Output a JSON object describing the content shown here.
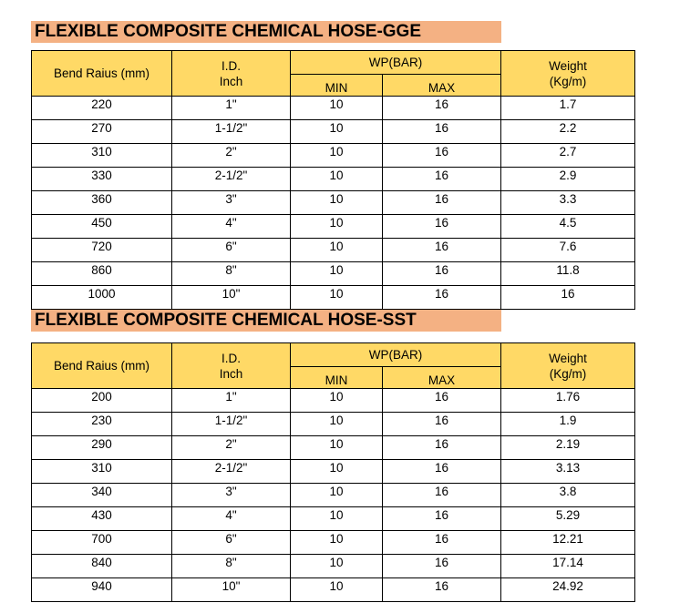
{
  "tables": [
    {
      "title": "FLEXIBLE COMPOSITE CHEMICAL HOSE-GGE",
      "headers": {
        "bend_radius": "Bend Raius (mm)",
        "id_line1": "I.D.",
        "id_line2": "Inch",
        "wp": "WP(BAR)",
        "min": "MIN",
        "max": "MAX",
        "weight_line1": "Weight",
        "weight_line2": "(Kg/m)"
      },
      "rows": [
        {
          "bend": "220",
          "id": "1\"",
          "min": "10",
          "max": "16",
          "weight": "1.7"
        },
        {
          "bend": "270",
          "id": "1-1/2\"",
          "min": "10",
          "max": "16",
          "weight": "2.2"
        },
        {
          "bend": "310",
          "id": "2\"",
          "min": "10",
          "max": "16",
          "weight": "2.7"
        },
        {
          "bend": "330",
          "id": "2-1/2\"",
          "min": "10",
          "max": "16",
          "weight": "2.9"
        },
        {
          "bend": "360",
          "id": "3\"",
          "min": "10",
          "max": "16",
          "weight": "3.3"
        },
        {
          "bend": "450",
          "id": "4\"",
          "min": "10",
          "max": "16",
          "weight": "4.5"
        },
        {
          "bend": "720",
          "id": "6\"",
          "min": "10",
          "max": "16",
          "weight": "7.6"
        },
        {
          "bend": "860",
          "id": "8\"",
          "min": "10",
          "max": "16",
          "weight": "11.8"
        },
        {
          "bend": "1000",
          "id": "10\"",
          "min": "10",
          "max": "16",
          "weight": "16"
        }
      ]
    },
    {
      "title": "FLEXIBLE COMPOSITE CHEMICAL HOSE-SST",
      "headers": {
        "bend_radius": "Bend Raius (mm)",
        "id_line1": "I.D.",
        "id_line2": "Inch",
        "wp": "WP(BAR)",
        "min": "MIN",
        "max": "MAX",
        "weight_line1": "Weight",
        "weight_line2": "(Kg/m)"
      },
      "rows": [
        {
          "bend": "200",
          "id": "1\"",
          "min": "10",
          "max": "16",
          "weight": "1.76"
        },
        {
          "bend": "230",
          "id": "1-1/2\"",
          "min": "10",
          "max": "16",
          "weight": "1.9"
        },
        {
          "bend": "290",
          "id": "2\"",
          "min": "10",
          "max": "16",
          "weight": "2.19"
        },
        {
          "bend": "310",
          "id": "2-1/2\"",
          "min": "10",
          "max": "16",
          "weight": "3.13"
        },
        {
          "bend": "340",
          "id": "3\"",
          "min": "10",
          "max": "16",
          "weight": "3.8"
        },
        {
          "bend": "430",
          "id": "4\"",
          "min": "10",
          "max": "16",
          "weight": "5.29"
        },
        {
          "bend": "700",
          "id": "6\"",
          "min": "10",
          "max": "16",
          "weight": "12.21"
        },
        {
          "bend": "840",
          "id": "8\"",
          "min": "10",
          "max": "16",
          "weight": "17.14"
        },
        {
          "bend": "940",
          "id": "10\"",
          "min": "10",
          "max": "16",
          "weight": "24.92"
        }
      ]
    }
  ]
}
